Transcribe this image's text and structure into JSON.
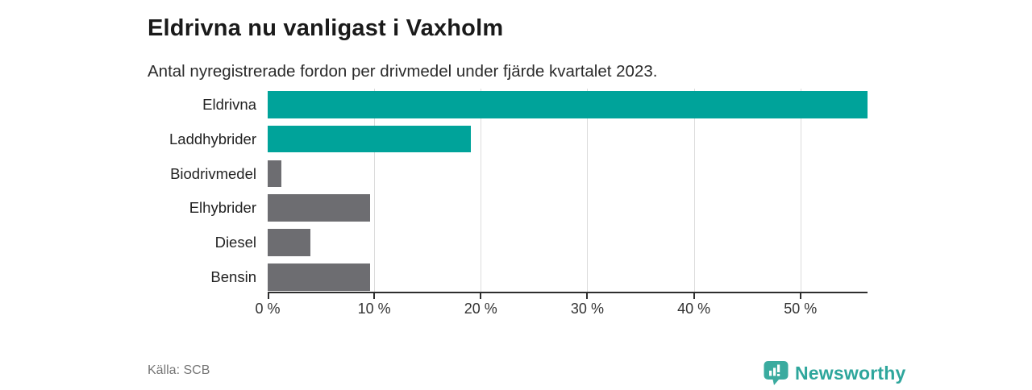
{
  "header": {
    "title": "Eldrivna nu vanligast i Vaxholm",
    "subtitle": "Antal nyregistrerade fordon per drivmedel under fjärde kvartalet 2023."
  },
  "chart_data": {
    "type": "bar",
    "orientation": "horizontal",
    "title": "Eldrivna nu vanligast i Vaxholm",
    "subtitle": "Antal nyregistrerade fordon per drivmedel under fjärde kvartalet 2023.",
    "categories": [
      "Eldrivna",
      "Laddhybrider",
      "Biodrivmedel",
      "Elhybrider",
      "Diesel",
      "Bensin"
    ],
    "values": [
      56.3,
      19.1,
      1.3,
      9.6,
      4.0,
      9.6
    ],
    "unit": "%",
    "xlim": [
      0,
      56.3
    ],
    "x_ticks": [
      0,
      10,
      20,
      30,
      40,
      50
    ],
    "x_tick_labels": [
      "0 %",
      "10 %",
      "20 %",
      "30 %",
      "40 %",
      "50 %"
    ],
    "bar_colors": [
      "#00a39a",
      "#00a39a",
      "#6d6d71",
      "#6d6d71",
      "#6d6d71",
      "#6d6d71"
    ],
    "highlight_color": "#00a39a",
    "default_color": "#6d6d71",
    "grid": true,
    "legend": false
  },
  "footer": {
    "source": "Källa: SCB",
    "brand": "Newsworthy",
    "brand_color": "#2ea69c",
    "brand_icon_color": "#3aab9f"
  }
}
